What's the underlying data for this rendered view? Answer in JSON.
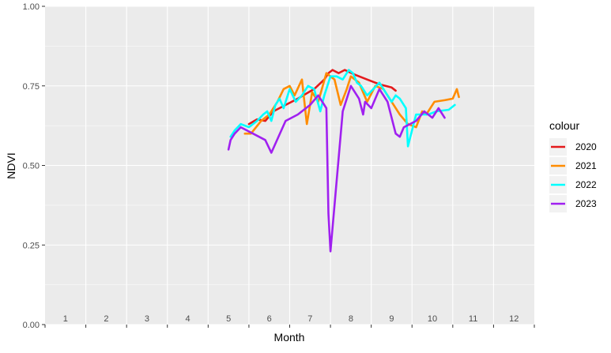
{
  "chart_data": {
    "type": "line",
    "xlabel": "Month",
    "ylabel": "NDVI",
    "xlim": [
      0.5,
      12.5
    ],
    "ylim": [
      0,
      1
    ],
    "x_ticks": [
      1,
      2,
      3,
      4,
      5,
      6,
      7,
      8,
      9,
      10,
      11,
      12
    ],
    "x_tick_labels": [
      "1",
      "2",
      "3",
      "4",
      "5",
      "6",
      "7",
      "8",
      "9",
      "10",
      "11",
      "12"
    ],
    "y_ticks": [
      0,
      0.25,
      0.5,
      0.75,
      1
    ],
    "y_tick_labels": [
      "0.00",
      "0.25",
      "0.50",
      "0.75",
      "1.00"
    ],
    "grid": true,
    "panel_background": "#ebebeb",
    "legend": {
      "title": "colour",
      "position": "right"
    },
    "series": [
      {
        "name": "2020",
        "color": "#e41a1c",
        "x": [
          5.5,
          5.7,
          5.9,
          6.1,
          6.4,
          6.7,
          6.9,
          7.1,
          7.35,
          7.45,
          7.55,
          7.7,
          7.85,
          8.1,
          8.4,
          8.7,
          9.0,
          9.1
        ],
        "y": [
          0.63,
          0.645,
          0.64,
          0.67,
          0.69,
          0.71,
          0.725,
          0.74,
          0.77,
          0.79,
          0.8,
          0.79,
          0.8,
          0.785,
          0.77,
          0.755,
          0.745,
          0.735
        ]
      },
      {
        "name": "2021",
        "color": "#ff8c00",
        "x": [
          5.4,
          5.55,
          5.8,
          6.0,
          6.2,
          6.35,
          6.5,
          6.62,
          6.8,
          6.92,
          7.05,
          7.2,
          7.4,
          7.6,
          7.75,
          7.9,
          8.0,
          8.2,
          8.4,
          8.6,
          8.8,
          9.0,
          9.2,
          9.4,
          9.6,
          9.75,
          9.85,
          10.05,
          10.3,
          10.5,
          10.6,
          10.65
        ],
        "y": [
          0.6,
          0.6,
          0.64,
          0.66,
          0.7,
          0.74,
          0.75,
          0.72,
          0.77,
          0.63,
          0.73,
          0.7,
          0.79,
          0.77,
          0.69,
          0.74,
          0.78,
          0.76,
          0.7,
          0.75,
          0.74,
          0.7,
          0.66,
          0.63,
          0.62,
          0.67,
          0.66,
          0.7,
          0.705,
          0.71,
          0.74,
          0.715
        ]
      },
      {
        "name": "2022",
        "color": "#00ffff",
        "x": [
          5.05,
          5.15,
          5.3,
          5.5,
          5.7,
          5.85,
          5.95,
          6.05,
          6.15,
          6.25,
          6.35,
          6.5,
          6.65,
          6.8,
          6.95,
          7.1,
          7.25,
          7.35,
          7.5,
          7.65,
          7.8,
          7.95,
          8.05,
          8.15,
          8.25,
          8.4,
          8.55,
          8.7,
          8.85,
          9.0,
          9.1,
          9.2,
          9.35,
          9.4,
          9.6,
          9.9,
          10.1,
          10.4,
          10.55
        ],
        "y": [
          0.59,
          0.61,
          0.63,
          0.62,
          0.64,
          0.66,
          0.67,
          0.64,
          0.69,
          0.71,
          0.68,
          0.74,
          0.7,
          0.72,
          0.75,
          0.74,
          0.67,
          0.72,
          0.78,
          0.78,
          0.77,
          0.8,
          0.79,
          0.76,
          0.75,
          0.72,
          0.74,
          0.76,
          0.73,
          0.7,
          0.72,
          0.71,
          0.68,
          0.56,
          0.66,
          0.66,
          0.67,
          0.675,
          0.69
        ]
      },
      {
        "name": "2023",
        "color": "#a020f0",
        "x": [
          5.0,
          5.05,
          5.15,
          5.3,
          5.6,
          5.9,
          6.05,
          6.4,
          6.7,
          7.0,
          7.2,
          7.4,
          7.45,
          7.5,
          7.8,
          8.0,
          8.2,
          8.3,
          8.35,
          8.5,
          8.7,
          8.9,
          9.1,
          9.2,
          9.3,
          9.6,
          9.8,
          10.0,
          10.15,
          10.3
        ],
        "y": [
          0.55,
          0.58,
          0.6,
          0.62,
          0.6,
          0.58,
          0.54,
          0.64,
          0.66,
          0.69,
          0.72,
          0.68,
          0.35,
          0.23,
          0.67,
          0.75,
          0.71,
          0.66,
          0.7,
          0.68,
          0.74,
          0.7,
          0.6,
          0.59,
          0.62,
          0.64,
          0.67,
          0.65,
          0.68,
          0.65
        ]
      }
    ]
  }
}
